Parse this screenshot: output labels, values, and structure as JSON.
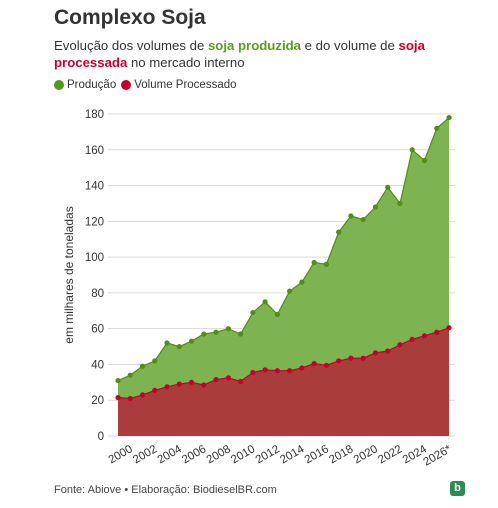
{
  "title": "Complexo Soja",
  "subtitle": {
    "part1": "Evolução dos volumes de ",
    "highlight1": "soja produzida",
    "part2": " e do volume de ",
    "highlight2": "soja processada",
    "part3": " no mercado interno"
  },
  "legend": [
    {
      "label": "Produção",
      "color": "#4f9a1a"
    },
    {
      "label": "Volume Processado",
      "color": "#c40030"
    }
  ],
  "footer": "Fonte: Abiove • Elaboração: BiodieselBR.com",
  "logo_text": "b",
  "colors": {
    "production_line": "#4f8f12",
    "production_fill": "#7db350",
    "processed_line": "#c40030",
    "processed_fill": "#ab3c3c",
    "grid": "#d9d9d9",
    "text": "#333333"
  },
  "chart_data": {
    "type": "area",
    "title": "Complexo Soja",
    "xlabel": "",
    "ylabel": "em milhares de toneladas",
    "ylim": [
      0,
      180
    ],
    "yticks": [
      0,
      20,
      40,
      60,
      80,
      100,
      120,
      140,
      160,
      180
    ],
    "x_tick_labels": [
      "2000",
      "2002",
      "2004",
      "2006",
      "2008",
      "2010",
      "2012",
      "2014",
      "2016",
      "2018",
      "2020",
      "2022",
      "2024",
      "2026*"
    ],
    "x": [
      "1999",
      "2000",
      "2001",
      "2002",
      "2003",
      "2004",
      "2005",
      "2006",
      "2007",
      "2008",
      "2009",
      "2010",
      "2011",
      "2012",
      "2013",
      "2014",
      "2015",
      "2016",
      "2017",
      "2018",
      "2019",
      "2020",
      "2021",
      "2022",
      "2023",
      "2024",
      "2025",
      "2026*"
    ],
    "series": [
      {
        "name": "Produção",
        "values": [
          31,
          34,
          39,
          42,
          52,
          50,
          53,
          57,
          58,
          60,
          57,
          69,
          75,
          68,
          81,
          86,
          97,
          96,
          114,
          123,
          121,
          128,
          139,
          130,
          160,
          154,
          172,
          178
        ]
      },
      {
        "name": "Volume Processado",
        "values": [
          21.5,
          21,
          23,
          25.5,
          27.5,
          29,
          30,
          28.5,
          31.5,
          32.5,
          30.5,
          35.5,
          37,
          36.5,
          36.5,
          38,
          40.5,
          39.5,
          42,
          43.5,
          43.5,
          46.5,
          47.5,
          51,
          54,
          56,
          58,
          60.5
        ]
      }
    ],
    "grid": true,
    "legend_position": "top-left"
  }
}
